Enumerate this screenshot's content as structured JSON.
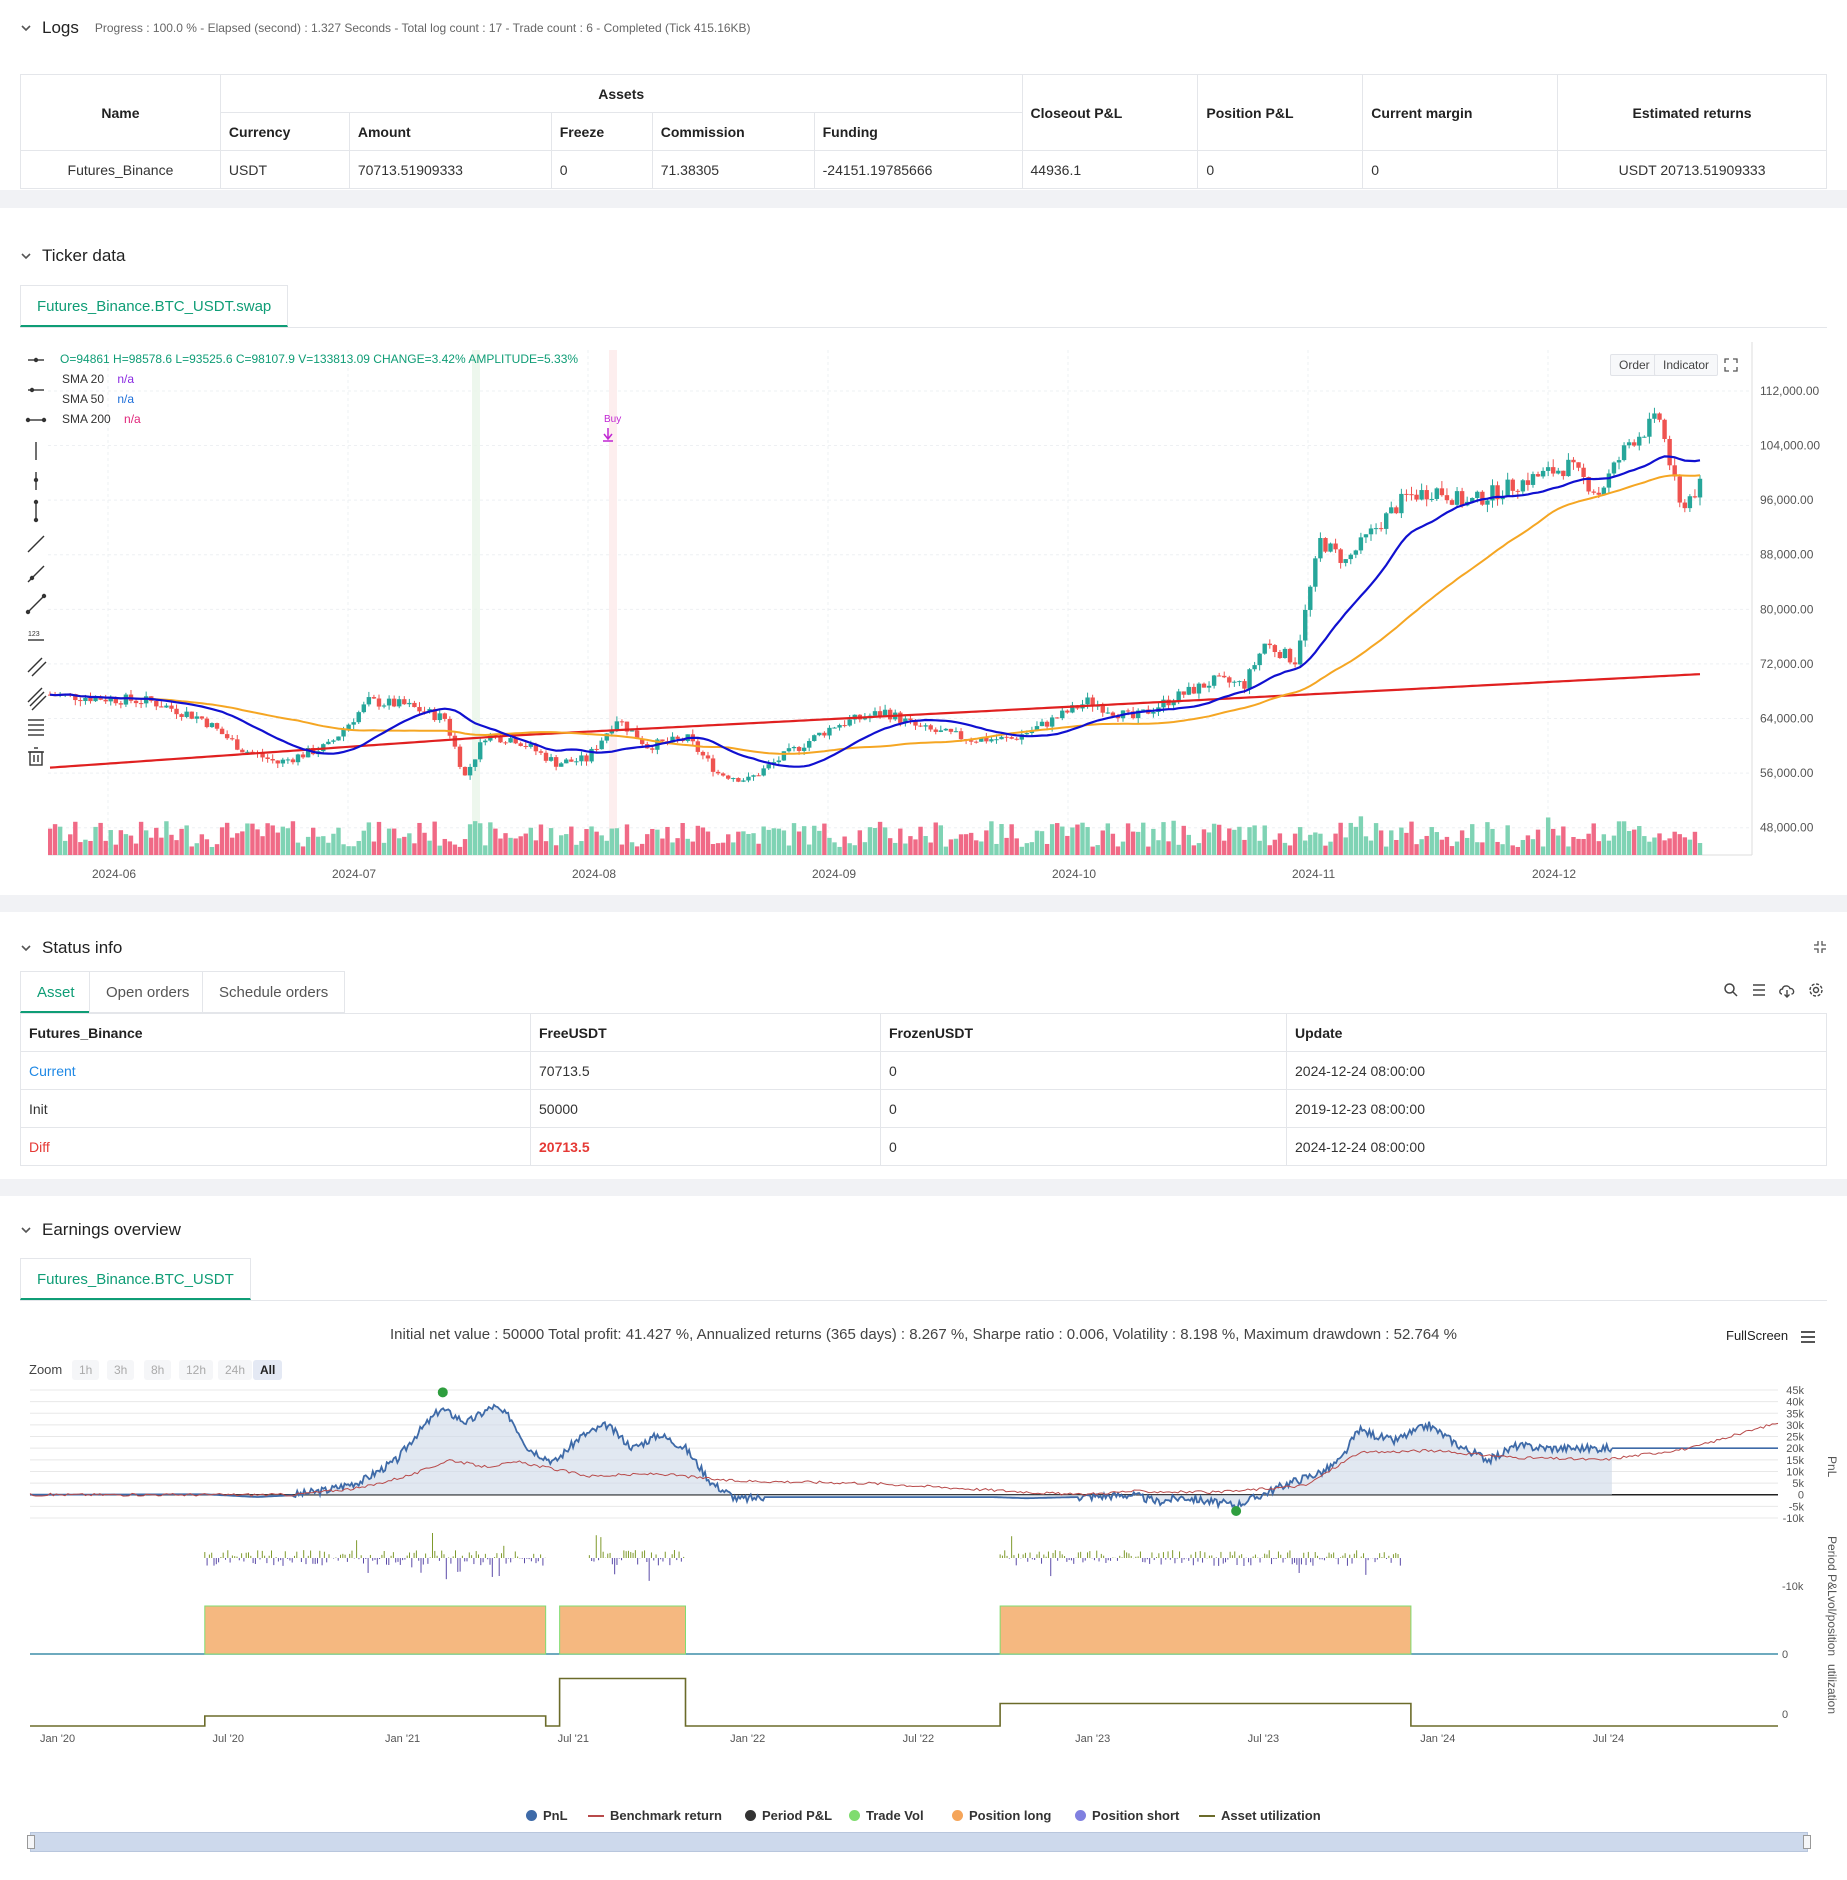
{
  "logs": {
    "title": "Logs",
    "summary": "Progress : 100.0 % - Elapsed (second) : 1.327  Seconds - Total log count : 17 - Trade count : 6 - Completed (Tick 415.16KB)",
    "table": {
      "col_name": "Name",
      "col_assets": "Assets",
      "col_currency": "Currency",
      "col_amount": "Amount",
      "col_freeze": "Freeze",
      "col_commission": "Commission",
      "col_funding": "Funding",
      "col_closeout": "Closeout P&L",
      "col_position": "Position P&L",
      "col_margin": "Current margin",
      "col_returns": "Estimated returns",
      "row": {
        "name": "Futures_Binance",
        "currency": "USDT",
        "amount": "70713.51909333",
        "freeze": "0",
        "commission": "71.38305",
        "funding": "-24151.19785666",
        "closeout": "44936.1",
        "position": "0",
        "margin": "0",
        "returns": "USDT 20713.51909333"
      }
    }
  },
  "ticker": {
    "title": "Ticker data",
    "tab": "Futures_Binance.BTC_USDT.swap",
    "ohlc": "O=94861 H=98578.6 L=93525.6 C=98107.9 V=133813.09 CHANGE=3.42% AMPLITUDE=5.33%",
    "sma": [
      {
        "label": "SMA 20",
        "value": "n/a",
        "color": "#8a2be2"
      },
      {
        "label": "SMA 50",
        "value": "n/a",
        "color": "#1e6fd9"
      },
      {
        "label": "SMA 200",
        "value": "n/a",
        "color": "#e0257a"
      }
    ],
    "order_btn": "Order",
    "indicator_btn": "Indicator",
    "buy_label": "Buy",
    "y_ticks": [
      "112,000.00",
      "104,000.00",
      "96,000.00",
      "88,000.00",
      "80,000.00",
      "72,000.00",
      "64,000.00",
      "56,000.00",
      "48,000.00"
    ],
    "x_ticks": [
      "2024-06",
      "2024-07",
      "2024-08",
      "2024-09",
      "2024-10",
      "2024-11",
      "2024-12"
    ]
  },
  "status": {
    "title": "Status info",
    "tabs": [
      "Asset",
      "Open orders",
      "Schedule orders"
    ],
    "headers": [
      "Futures_Binance",
      "FreeUSDT",
      "FrozenUSDT",
      "Update"
    ],
    "rows": [
      {
        "label": "Current",
        "free": "70713.5",
        "frozen": "0",
        "update": "2024-12-24 08:00:00"
      },
      {
        "label": "Init",
        "free": "50000",
        "frozen": "0",
        "update": "2019-12-23 08:00:00"
      },
      {
        "label": "Diff",
        "free": "20713.5",
        "frozen": "0",
        "update": "2024-12-24 08:00:00"
      }
    ],
    "colors": {
      "current": "#1e88e5",
      "diff": "#e53935"
    }
  },
  "earnings": {
    "title": "Earnings overview",
    "tab": "Futures_Binance.BTC_USDT",
    "summary": "Initial net value : 50000 Total profit: 41.427 %, Annualized returns (365 days) : 8.267 %, Sharpe ratio : 0.006, Volatility : 8.198 %, Maximum drawdown : 52.764 %",
    "fullscreen": "FullScreen",
    "zoom_label": "Zoom",
    "zoom_options": [
      "1h",
      "3h",
      "8h",
      "12h",
      "24h",
      "All"
    ],
    "pnl_ticks": [
      "45k",
      "40k",
      "35k",
      "30k",
      "25k",
      "20k",
      "15k",
      "10k",
      "5k",
      "0",
      "-5k",
      "-10k"
    ],
    "period_ticks": [
      "-10k"
    ],
    "axis_titles": [
      "PnL",
      "Period P&L",
      "vol/position",
      "utilization"
    ],
    "zero": "0",
    "x_ticks": [
      "Jan '20",
      "Jul '20",
      "Jan '21",
      "Jul '21",
      "Jan '22",
      "Jul '22",
      "Jan '23",
      "Jul '23",
      "Jan '24",
      "Jul '24"
    ],
    "legend": [
      {
        "label": "PnL",
        "color": "#3e6aa8",
        "kind": "dot"
      },
      {
        "label": "Benchmark return",
        "color": "#b84a4a",
        "kind": "line"
      },
      {
        "label": "Period P&L",
        "color": "#333333",
        "kind": "dot"
      },
      {
        "label": "Trade Vol",
        "color": "#7fdc6f",
        "kind": "dot"
      },
      {
        "label": "Position long",
        "color": "#f5a55a",
        "kind": "dot"
      },
      {
        "label": "Position short",
        "color": "#8080e0",
        "kind": "dot"
      },
      {
        "label": "Asset utilization",
        "color": "#6b6b2a",
        "kind": "line"
      }
    ]
  },
  "chart_data": {
    "type": "line",
    "title": "",
    "series": [
      {
        "name": "SMA 20",
        "color": "#1010d0"
      },
      {
        "name": "SMA 50",
        "color": "#f5a623"
      },
      {
        "name": "SMA 200",
        "color": "#e02020"
      }
    ],
    "ylim": [
      44000,
      118000
    ]
  }
}
